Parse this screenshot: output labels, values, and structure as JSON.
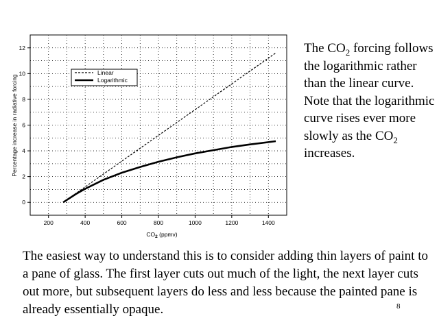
{
  "chart_data": {
    "type": "line",
    "title": "",
    "xlabel_main": "CO",
    "xlabel_sub": "2",
    "xlabel_tail": " (ppmv)",
    "ylabel": "Percentage increase in radiative forcing",
    "xlim": [
      100,
      1500
    ],
    "ylim": [
      -1,
      13
    ],
    "x_ticks": [
      200,
      400,
      600,
      800,
      1000,
      1200,
      1400
    ],
    "y_ticks": [
      0,
      2,
      4,
      6,
      8,
      10,
      12
    ],
    "grid": true,
    "legend_position": "upper-left",
    "series": [
      {
        "name": "Linear",
        "style": "dashed",
        "x": [
          280,
          1440
        ],
        "y": [
          0,
          11.6
        ]
      },
      {
        "name": "Logarithmic",
        "style": "solid",
        "x": [
          280,
          350,
          400,
          500,
          600,
          700,
          800,
          900,
          1000,
          1100,
          1200,
          1300,
          1440
        ],
        "y": [
          0,
          0.65,
          1.05,
          1.75,
          2.3,
          2.75,
          3.15,
          3.5,
          3.8,
          4.05,
          4.3,
          4.5,
          4.75
        ]
      }
    ]
  },
  "side_note": {
    "line1_pre": "The CO",
    "line1_sub": "2",
    "line1_post": " forcing follows the logarithmic rather than the linear curve.  Note that the logarithmic curve rises ever more slowly as the CO",
    "line2_sub": "2",
    "line2_post": " increases."
  },
  "bottom_text": "The easiest way to understand this is to consider adding thin layers of paint to a pane of glass.  The first layer cuts out much of the light, the next layer cuts out more, but subsequent layers do less and less because the painted pane is already essentially opaque.",
  "page_number": "8"
}
